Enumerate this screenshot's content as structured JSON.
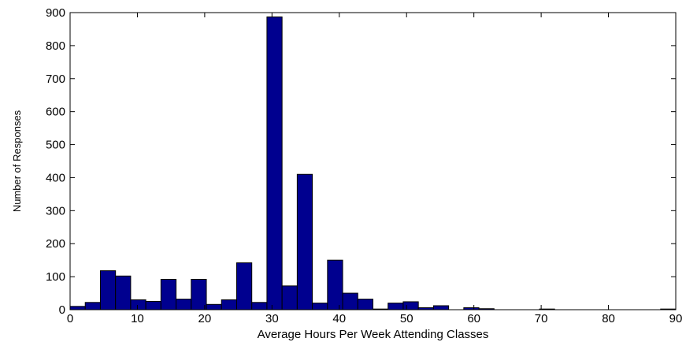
{
  "chart_data": {
    "type": "bar",
    "title": "",
    "xlabel": "Average Hours Per Week Attending Classes",
    "ylabel": "Number of Responses",
    "xlim": [
      0,
      90
    ],
    "ylim": [
      0,
      900
    ],
    "xticks": [
      0,
      10,
      20,
      30,
      40,
      50,
      60,
      70,
      80,
      90
    ],
    "yticks": [
      0,
      100,
      200,
      300,
      400,
      500,
      600,
      700,
      800,
      900
    ],
    "bin_width": 2.25,
    "bins": [
      {
        "x": 1.125,
        "value": 10
      },
      {
        "x": 3.375,
        "value": 22
      },
      {
        "x": 5.625,
        "value": 118
      },
      {
        "x": 7.875,
        "value": 102
      },
      {
        "x": 10.125,
        "value": 30
      },
      {
        "x": 12.375,
        "value": 25
      },
      {
        "x": 14.625,
        "value": 92
      },
      {
        "x": 16.875,
        "value": 32
      },
      {
        "x": 19.125,
        "value": 92
      },
      {
        "x": 21.375,
        "value": 16
      },
      {
        "x": 23.625,
        "value": 30
      },
      {
        "x": 25.875,
        "value": 142
      },
      {
        "x": 28.125,
        "value": 22
      },
      {
        "x": 30.375,
        "value": 887
      },
      {
        "x": 32.625,
        "value": 72
      },
      {
        "x": 34.875,
        "value": 410
      },
      {
        "x": 37.125,
        "value": 20
      },
      {
        "x": 39.375,
        "value": 150
      },
      {
        "x": 41.625,
        "value": 50
      },
      {
        "x": 43.875,
        "value": 32
      },
      {
        "x": 46.125,
        "value": 2
      },
      {
        "x": 48.375,
        "value": 20
      },
      {
        "x": 50.625,
        "value": 24
      },
      {
        "x": 52.875,
        "value": 6
      },
      {
        "x": 55.125,
        "value": 12
      },
      {
        "x": 57.375,
        "value": 0
      },
      {
        "x": 59.625,
        "value": 6
      },
      {
        "x": 61.875,
        "value": 3
      },
      {
        "x": 64.125,
        "value": 0
      },
      {
        "x": 66.375,
        "value": 0
      },
      {
        "x": 68.625,
        "value": 0
      },
      {
        "x": 70.875,
        "value": 2
      },
      {
        "x": 73.125,
        "value": 0
      },
      {
        "x": 75.375,
        "value": 0
      },
      {
        "x": 77.625,
        "value": 0
      },
      {
        "x": 79.875,
        "value": 0
      },
      {
        "x": 82.125,
        "value": 0
      },
      {
        "x": 84.375,
        "value": 0
      },
      {
        "x": 86.625,
        "value": 0
      },
      {
        "x": 88.875,
        "value": 2
      }
    ],
    "bar_color": "#00008f",
    "grid": false,
    "legend": "none"
  }
}
